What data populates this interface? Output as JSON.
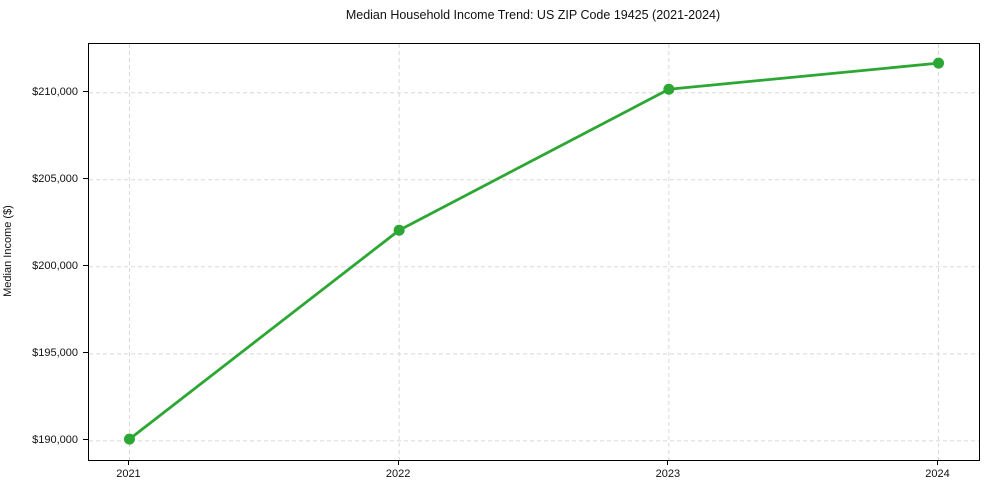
{
  "chart_data": {
    "type": "line",
    "title": "Median Household Income Trend: US ZIP Code 19425 (2021-2024)",
    "xlabel": "",
    "ylabel": "Median Income ($)",
    "series": [
      {
        "name": "Median Household Income",
        "x": [
          2021,
          2022,
          2023,
          2024
        ],
        "values": [
          190100,
          202100,
          210200,
          211700
        ]
      }
    ],
    "xticks": [
      2021,
      2022,
      2023,
      2024
    ],
    "xtick_labels": [
      "2021",
      "2022",
      "2023",
      "2024"
    ],
    "yticks": [
      190000,
      195000,
      200000,
      205000,
      210000
    ],
    "ytick_labels": [
      "$190,000",
      "$195,000",
      "$200,000",
      "$205,000",
      "$210,000"
    ],
    "xlim": [
      2020.85,
      2024.15
    ],
    "ylim": [
      188900,
      212800
    ],
    "grid": true,
    "grid_style": "dashed",
    "legend": "none",
    "colors": {
      "line": "#2ca734",
      "marker": "#2ca734",
      "grid": "#d8d8d8",
      "spine": "#000000",
      "text": "#111111",
      "background": "#ffffff"
    },
    "line_width": 2.8,
    "marker_radius": 5.5
  }
}
